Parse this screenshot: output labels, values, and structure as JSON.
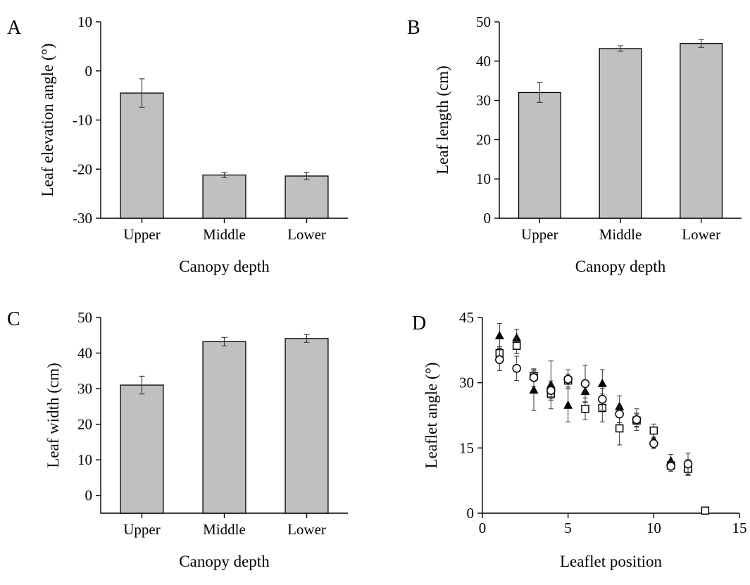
{
  "colors": {
    "bar_fill": "#c0c0c0",
    "stroke": "#000000"
  },
  "chart_data": [
    {
      "panel": "A",
      "type": "bar",
      "xlabel": "Canopy depth",
      "ylabel": "Leaf elevation angle (°)",
      "categories": [
        "Upper",
        "Middle",
        "Lower"
      ],
      "values": [
        -4.5,
        -21.2,
        -21.4
      ],
      "errors": [
        2.9,
        0.5,
        0.7
      ],
      "ylim": [
        -30,
        10
      ],
      "yticks": [
        -30,
        -20,
        -10,
        0,
        10
      ],
      "baseline": -30
    },
    {
      "panel": "B",
      "type": "bar",
      "xlabel": "Canopy depth",
      "ylabel": "Leaf length (cm)",
      "categories": [
        "Upper",
        "Middle",
        "Lower"
      ],
      "values": [
        32.0,
        43.2,
        44.5
      ],
      "errors": [
        2.5,
        0.7,
        1.0
      ],
      "ylim": [
        0,
        50
      ],
      "yticks": [
        0,
        10,
        20,
        30,
        40,
        50
      ],
      "baseline": 0
    },
    {
      "panel": "C",
      "type": "bar",
      "xlabel": "Canopy depth",
      "ylabel": "Leaf width (cm)",
      "categories": [
        "Upper",
        "Middle",
        "Lower"
      ],
      "values": [
        31.0,
        43.2,
        44.1
      ],
      "errors": [
        2.5,
        1.2,
        1.1
      ],
      "ylim": [
        -5,
        50
      ],
      "yticks": [
        0,
        10,
        20,
        30,
        40,
        50
      ],
      "baseline": -5
    },
    {
      "panel": "D",
      "type": "scatter",
      "xlabel": "Leaflet position",
      "ylabel": "Leaflet angle (°)",
      "xlim": [
        0,
        15
      ],
      "ylim": [
        0,
        45
      ],
      "xticks": [
        0,
        5,
        10,
        15
      ],
      "yticks": [
        0,
        15,
        30,
        45
      ],
      "series": [
        {
          "marker": "triangle",
          "x": [
            1,
            2,
            3,
            4,
            5,
            6,
            7,
            8,
            9,
            10,
            11,
            12
          ],
          "y": [
            40.8,
            40.3,
            28.3,
            29.5,
            24.8,
            28.0,
            29.8,
            24.5,
            21.5,
            16.8,
            12.0,
            10.5
          ],
          "err": [
            2.8,
            2.0,
            4.7,
            5.5,
            3.8,
            2.5,
            3.2,
            2.5,
            2.5,
            1.5,
            1.5,
            1.8
          ]
        },
        {
          "marker": "square",
          "x": [
            1,
            2,
            3,
            4,
            5,
            6,
            7,
            8,
            9,
            10,
            11,
            12,
            13
          ],
          "y": [
            36.8,
            38.5,
            31.5,
            27.5,
            30.5,
            24.0,
            24.2,
            19.5,
            21.3,
            19.0,
            11.0,
            10.2,
            0.6
          ],
          "err": [
            1.5,
            1.8,
            1.2,
            1.2,
            1.5,
            2.5,
            3.2,
            3.8,
            1.5,
            1.5,
            1.0,
            1.2,
            0.3
          ]
        },
        {
          "marker": "circle",
          "x": [
            1,
            2,
            3,
            4,
            5,
            6,
            7,
            8,
            9,
            10,
            11,
            12
          ],
          "y": [
            35.3,
            33.3,
            31.2,
            28.2,
            30.8,
            29.8,
            26.2,
            22.8,
            21.5,
            16.0,
            10.8,
            11.3
          ],
          "err": [
            2.5,
            2.8,
            2.0,
            2.2,
            2.2,
            4.2,
            2.5,
            2.0,
            1.5,
            1.2,
            1.2,
            2.5
          ]
        }
      ]
    }
  ]
}
